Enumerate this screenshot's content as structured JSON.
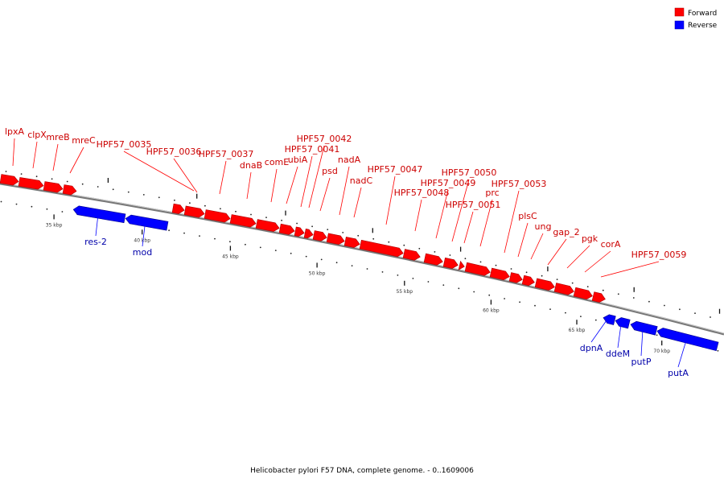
{
  "colors": {
    "forward": "#ff0000",
    "reverse": "#0000ff",
    "forward_text": "#cc0000",
    "reverse_text": "#0000aa",
    "backbone": "#888888"
  },
  "legend": {
    "forward_label": "Forward",
    "reverse_label": "Reverse"
  },
  "caption": "Helicobacter pylori F57 DNA, complete genome. - 0..1609006",
  "ticks": [
    "35 kbp",
    "40 kbp",
    "45 kbp",
    "50 kbp",
    "55 kbp",
    "60 kbp",
    "65 kbp",
    "70 kbp"
  ],
  "forward_genes": [
    "lpxA",
    "clpX",
    "mreB",
    "mreC",
    "HPF57_0035",
    "HPF57_0036",
    "HPF57_0037",
    "dnaB",
    "comE",
    "ubiA",
    "HPF57_0041",
    "HPF57_0042",
    "psd",
    "nadA",
    "nadC",
    "HPF57_0047",
    "HPF57_0048",
    "HPF57_0049",
    "HPF57_0050",
    "HPF57_0051",
    "prc",
    "HPF57_0053",
    "plsC",
    "ung",
    "gap_2",
    "pgk",
    "corA",
    "HPF57_0059"
  ],
  "reverse_genes": [
    "res-2",
    "mod",
    "dpnA",
    "ddeM",
    "putP",
    "putA"
  ]
}
